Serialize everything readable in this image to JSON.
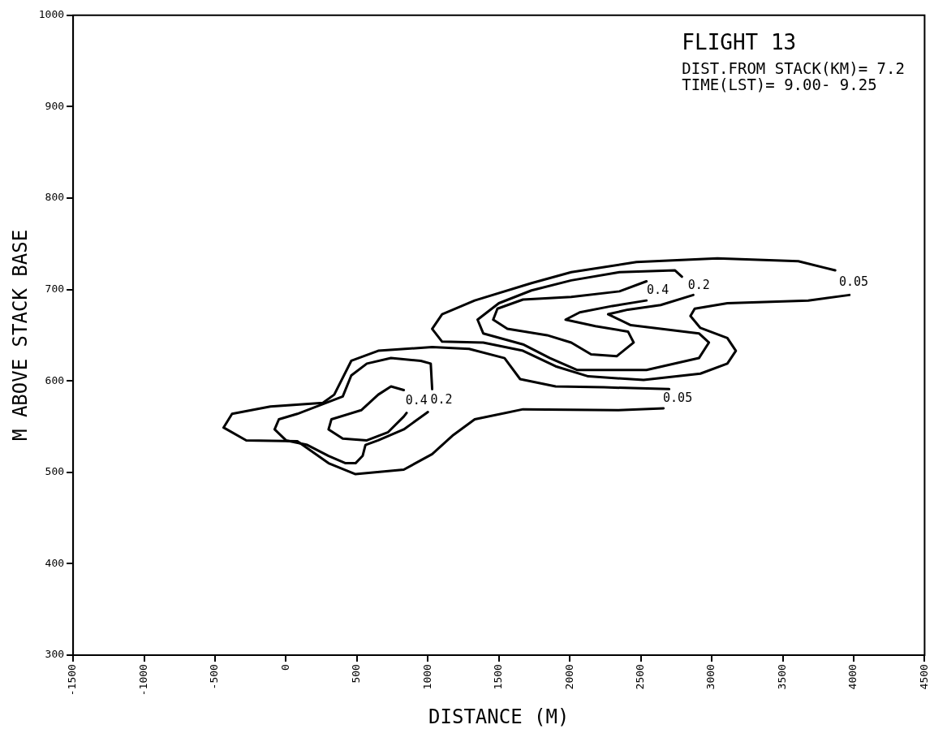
{
  "chart_data": {
    "type": "line",
    "title": "FLIGHT 13",
    "annotations": [
      "DIST.FROM STACK(KM)= 7.2",
      "TIME(LST)= 9.00- 9.25"
    ],
    "xlabel": "DISTANCE (M)",
    "ylabel": "M ABOVE STACK BASE",
    "xlim": [
      -1500,
      4500
    ],
    "ylim": [
      300,
      1000
    ],
    "xticks": [
      -1500,
      -1000,
      -500,
      0,
      500,
      1000,
      1500,
      2000,
      2500,
      3000,
      3500,
      4000,
      4500
    ],
    "yticks": [
      300,
      400,
      500,
      600,
      700,
      800,
      900,
      1000
    ],
    "grid": false,
    "legend": false,
    "marker": "none",
    "line_style": "solid",
    "series": [
      {
        "name": "0.05",
        "color": "#000000",
        "x": [
          2700,
          2240,
          1900,
          1650,
          1540,
          1290,
          1030,
          650,
          460,
          340,
          260,
          -110,
          -380,
          -440,
          -280,
          80,
          300,
          490,
          830,
          1030,
          1180,
          1330,
          1670,
          2340,
          2660
        ],
        "values": [
          591,
          593,
          594,
          602,
          625,
          635,
          637,
          633,
          622,
          585,
          576,
          572,
          564,
          549,
          535,
          534,
          510,
          498,
          503,
          520,
          541,
          558,
          569,
          568,
          570
        ]
      },
      {
        "name": "0.05",
        "color": "#000000",
        "x": [
          3870,
          3610,
          3040,
          2470,
          2010,
          1730,
          1330,
          1100,
          1030,
          1100,
          1390,
          1670,
          1900,
          2130,
          2520,
          2920,
          3110,
          3170,
          3110,
          2920,
          2850,
          2880,
          3110,
          3680,
          3970
        ],
        "values": [
          721,
          731,
          734,
          730,
          719,
          707,
          688,
          673,
          657,
          643,
          642,
          633,
          616,
          605,
          601,
          608,
          619,
          633,
          647,
          658,
          671,
          679,
          685,
          688,
          694
        ]
      },
      {
        "name": "0.2",
        "color": "#000000",
        "x": [
          2790,
          2740,
          2350,
          2010,
          1730,
          1500,
          1350,
          1390,
          1670,
          1860,
          2050,
          2540,
          2910,
          2980,
          2910,
          2430,
          2270,
          2410,
          2640,
          2870
        ],
        "values": [
          714,
          721,
          719,
          710,
          699,
          685,
          667,
          652,
          640,
          625,
          612,
          612,
          625,
          642,
          652,
          661,
          673,
          678,
          683,
          694
        ]
      },
      {
        "name": "0.4",
        "color": "#000000",
        "x": [
          2540,
          2350,
          2010,
          1670,
          1490,
          1460,
          1560,
          1840,
          2010,
          2150,
          2330,
          2450,
          2410,
          2180,
          1970,
          2070,
          2300,
          2540
        ],
        "values": [
          709,
          698,
          692,
          689,
          679,
          667,
          657,
          650,
          642,
          629,
          627,
          642,
          654,
          660,
          667,
          675,
          682,
          688
        ]
      },
      {
        "name": "0.2",
        "color": "#000000",
        "x": [
          1030,
          1020,
          950,
          740,
          570,
          460,
          400,
          80,
          -50,
          -80,
          0,
          150,
          300,
          420,
          490,
          540,
          560,
          650,
          830,
          1000
        ],
        "values": [
          591,
          619,
          622,
          625,
          619,
          606,
          583,
          564,
          558,
          547,
          535,
          530,
          518,
          510,
          510,
          518,
          530,
          535,
          547,
          566
        ]
      },
      {
        "name": "0.4",
        "color": "#000000",
        "x": [
          830,
          740,
          650,
          530,
          320,
          300,
          400,
          570,
          720,
          830,
          850
        ],
        "values": [
          590,
          594,
          585,
          568,
          558,
          547,
          537,
          535,
          544,
          561,
          565
        ]
      }
    ]
  }
}
